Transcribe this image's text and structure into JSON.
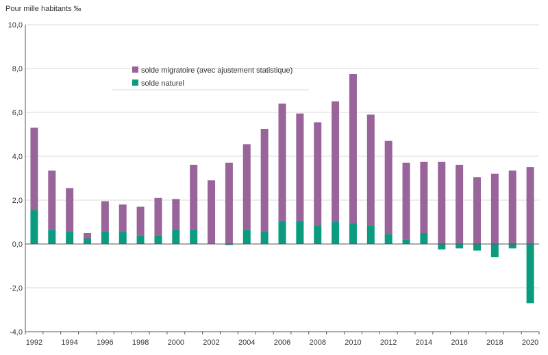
{
  "unit_label": "Pour mille habitants ‰",
  "colors": {
    "migratoire": "#98649a",
    "naturel": "#0b9b7f",
    "grid": "#d9d9d9",
    "axis": "#555555"
  },
  "chart_data": {
    "type": "bar",
    "stacked": true,
    "xlabel": "",
    "ylabel": "",
    "ylim": [
      -4.0,
      10.0
    ],
    "y_ticks": [
      "10,0",
      "8,0",
      "6,0",
      "4,0",
      "2,0",
      "0,0",
      "-2,0",
      "-4,0"
    ],
    "y_tick_values": [
      10,
      8,
      6,
      4,
      2,
      0,
      -2,
      -4
    ],
    "grid": true,
    "legend": "top-center",
    "categories": [
      1992,
      1993,
      1994,
      1995,
      1996,
      1997,
      1998,
      1999,
      2000,
      2001,
      2002,
      2003,
      2004,
      2005,
      2006,
      2007,
      2008,
      2009,
      2010,
      2011,
      2012,
      2013,
      2014,
      2015,
      2016,
      2017,
      2018,
      2019,
      2020
    ],
    "x_tick_labels": [
      "1992",
      "1994",
      "1996",
      "1998",
      "2000",
      "2002",
      "2004",
      "2006",
      "2008",
      "2010",
      "2012",
      "2014",
      "2016",
      "2018",
      "2020"
    ],
    "series": [
      {
        "name": "solde naturel",
        "values": [
          1.55,
          0.65,
          0.55,
          0.25,
          0.55,
          0.55,
          0.4,
          0.4,
          0.65,
          0.65,
          0.0,
          -0.05,
          0.65,
          0.55,
          1.05,
          1.05,
          0.85,
          1.0,
          0.95,
          0.85,
          0.45,
          0.2,
          0.5,
          -0.25,
          -0.2,
          -0.3,
          -0.6,
          -0.2,
          -2.7
        ]
      },
      {
        "name": "solde migratoire (avec ajustement statistique)",
        "values": [
          3.75,
          2.7,
          2.0,
          0.25,
          1.4,
          1.25,
          1.3,
          1.7,
          1.4,
          2.95,
          2.9,
          3.7,
          3.9,
          4.7,
          5.35,
          4.9,
          4.7,
          5.5,
          6.8,
          5.05,
          4.25,
          3.5,
          3.25,
          3.75,
          3.6,
          3.05,
          3.2,
          3.35,
          3.5
        ]
      }
    ]
  }
}
